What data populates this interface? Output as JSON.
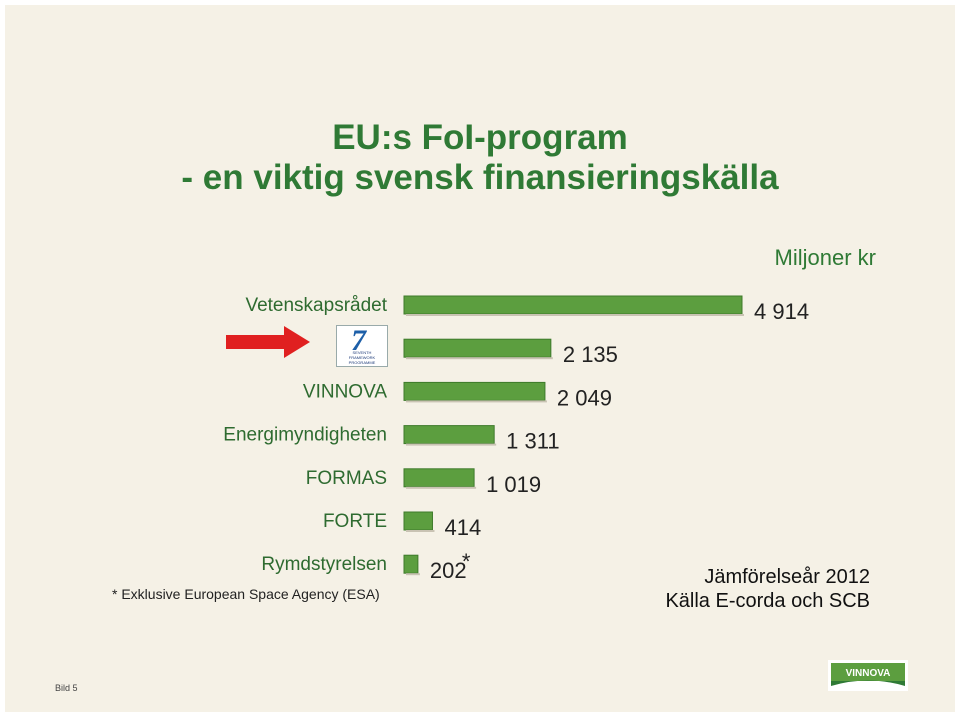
{
  "title": {
    "line1": "EU:s FoI-program",
    "line2": "- en viktig svensk finansieringskälla"
  },
  "unit_label": "Miljoner kr",
  "chart_data": {
    "type": "bar",
    "orientation": "horizontal",
    "categories": [
      "Vetenskapsrådet",
      "",
      "VINNOVA",
      "Energimyndigheten",
      "FORMAS",
      "FORTE",
      "Rymdstyrelsen"
    ],
    "values": [
      4914,
      2135,
      2049,
      1311,
      1019,
      414,
      202
    ],
    "value_labels": [
      "4 914",
      "2 135",
      "2 049",
      "1 311",
      "1 019",
      "414",
      "202"
    ],
    "footnote_markers": [
      "",
      "",
      "",
      "",
      "",
      "",
      "*"
    ],
    "highlight_index": 1,
    "bar_color": "#5c9e3f",
    "xlim": [
      0,
      5000
    ]
  },
  "fp7_logo": {
    "numeral": "7",
    "text": "SEVENTH FRAMEWORK PROGRAMME"
  },
  "footnote": "* Exklusive European Space Agency (ESA)",
  "comparison": {
    "line1": "Jämförelseår 2012",
    "line2": "Källa E-corda och SCB"
  },
  "slide_number": "Bild 5",
  "vinnova_logo": {
    "text": "VINNOVA"
  },
  "colors": {
    "accent": "#2f7a35",
    "arrow": "#e02020",
    "background": "#f5f1e6"
  }
}
